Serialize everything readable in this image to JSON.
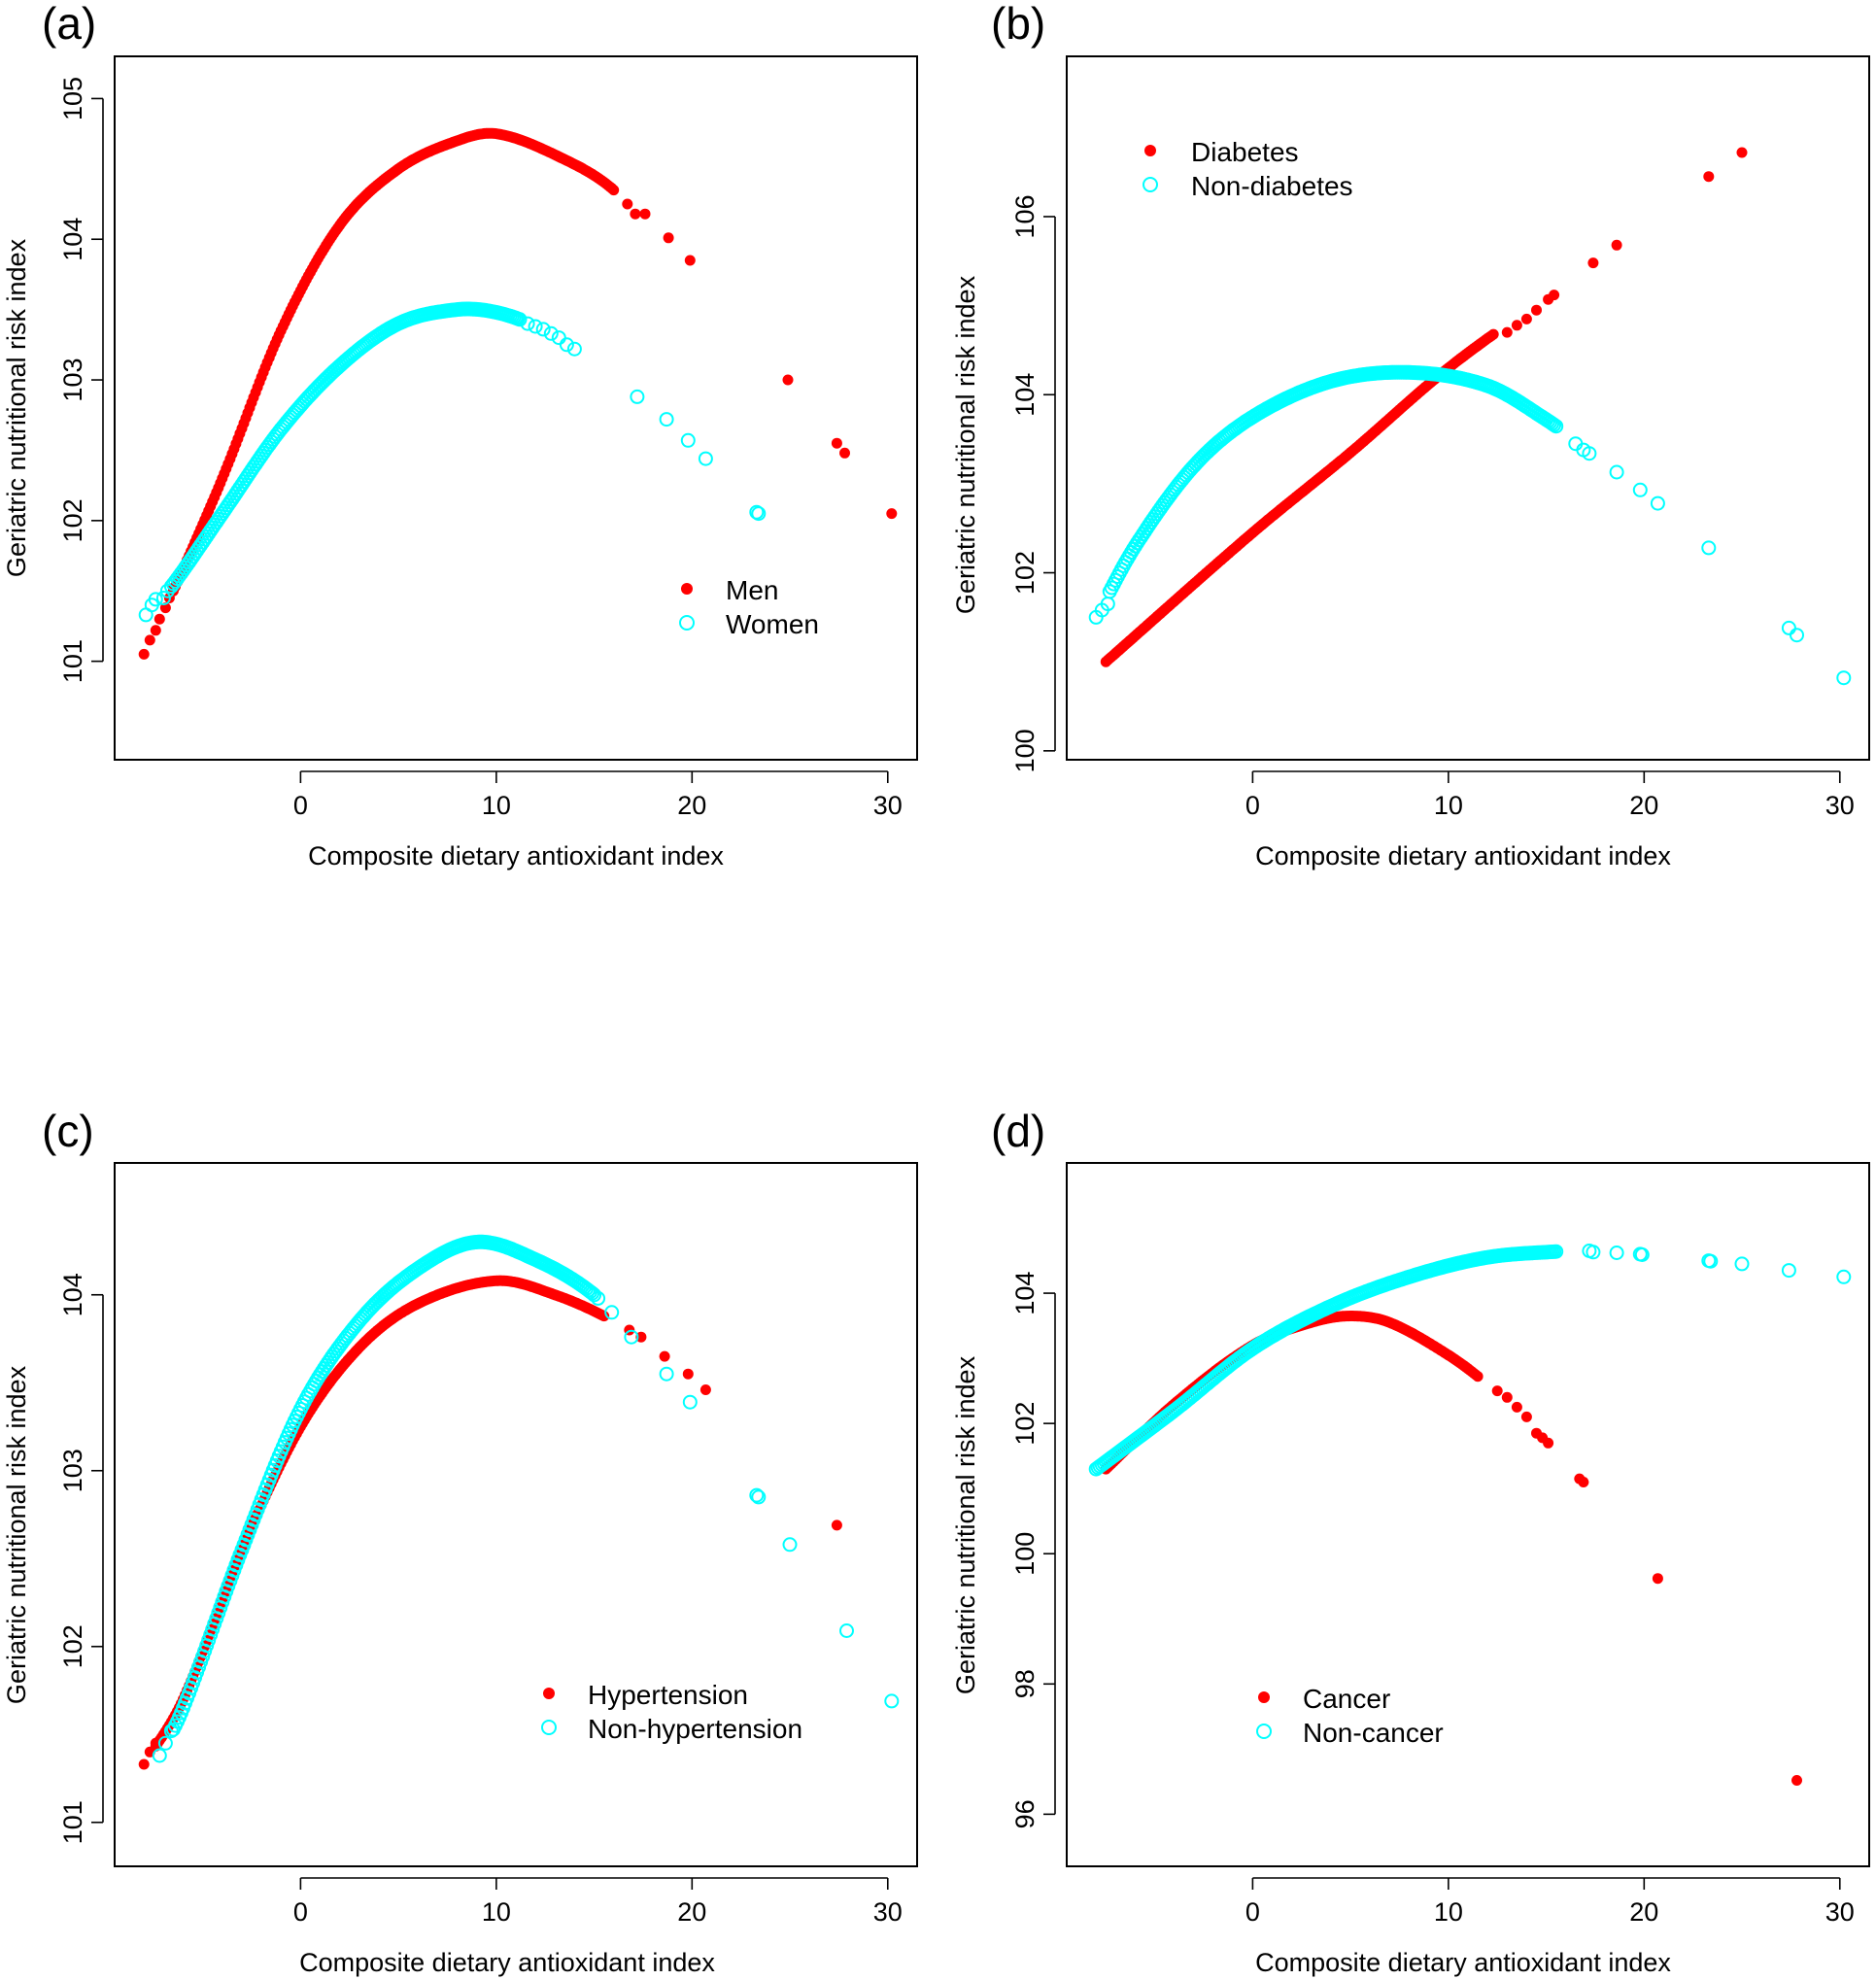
{
  "colors": {
    "series_a": "#ff0000",
    "series_b": "#00ffff",
    "axis": "#000000"
  },
  "chart_data": [
    {
      "type": "scatter",
      "panel_label": "(a)",
      "xlabel": "Composite dietary antioxidant index",
      "ylabel": "Geriatric nutritional risk index",
      "xlim": [
        -9.5,
        31.5
      ],
      "ylim": [
        100.3,
        105.3
      ],
      "xticks": [
        0,
        10,
        20,
        30
      ],
      "yticks": [
        101,
        102,
        103,
        104,
        105
      ],
      "legend": {
        "position": "right",
        "entries": [
          "Men",
          "Women"
        ]
      },
      "series": [
        {
          "name": "Men",
          "marker": "filled-circle",
          "color": "#ff0000",
          "curve": {
            "knots": [
              [
                -8,
                101.05
              ],
              [
                -6.5,
                101.5
              ],
              [
                -4,
                102.3
              ],
              [
                -1,
                103.35
              ],
              [
                2,
                104.1
              ],
              [
                5,
                104.5
              ],
              [
                8,
                104.7
              ],
              [
                10,
                104.75
              ],
              [
                13,
                104.6
              ],
              [
                16,
                104.35
              ],
              [
                18,
                104.0
              ],
              [
                20,
                103.85
              ]
            ],
            "x_from": -6.5,
            "x_to": 16,
            "step": 0.1
          },
          "points": [
            [
              -8,
              101.05
            ],
            [
              -7.7,
              101.15
            ],
            [
              -7.4,
              101.22
            ],
            [
              -7.2,
              101.3
            ],
            [
              -6.9,
              101.38
            ],
            [
              -6.7,
              101.45
            ],
            [
              -6.5,
              101.52
            ],
            [
              16.7,
              104.25
            ],
            [
              17.1,
              104.18
            ],
            [
              17.6,
              104.18
            ],
            [
              18.8,
              104.01
            ],
            [
              19.9,
              103.85
            ],
            [
              24.9,
              103.0
            ],
            [
              27.4,
              102.55
            ],
            [
              27.8,
              102.48
            ],
            [
              30.2,
              102.05
            ]
          ]
        },
        {
          "name": "Women",
          "marker": "open-circle",
          "color": "#00ffff",
          "curve": {
            "knots": [
              [
                -7.8,
                101.35
              ],
              [
                -6.5,
                101.55
              ],
              [
                -4,
                102.05
              ],
              [
                -1,
                102.65
              ],
              [
                2,
                103.1
              ],
              [
                5,
                103.4
              ],
              [
                8,
                103.5
              ],
              [
                10,
                103.48
              ],
              [
                12,
                103.38
              ],
              [
                14,
                103.2
              ]
            ],
            "x_from": -6.6,
            "x_to": 11.2,
            "step": 0.1
          },
          "points": [
            [
              -7.9,
              101.33
            ],
            [
              -7.6,
              101.4
            ],
            [
              -7.4,
              101.44
            ],
            [
              -7.0,
              101.45
            ],
            [
              -6.8,
              101.5
            ],
            [
              11.6,
              103.4
            ],
            [
              12.0,
              103.38
            ],
            [
              12.4,
              103.36
            ],
            [
              12.8,
              103.33
            ],
            [
              13.2,
              103.3
            ],
            [
              13.6,
              103.25
            ],
            [
              14.0,
              103.22
            ],
            [
              17.2,
              102.88
            ],
            [
              18.7,
              102.72
            ],
            [
              19.8,
              102.57
            ],
            [
              20.7,
              102.44
            ],
            [
              23.3,
              102.06
            ],
            [
              23.4,
              102.05
            ]
          ]
        }
      ]
    },
    {
      "type": "scatter",
      "panel_label": "(b)",
      "xlabel": "Composite dietary antioxidant index",
      "ylabel": "Geriatric nutritional risk index",
      "xlim": [
        -9.5,
        31.5
      ],
      "ylim": [
        99.9,
        107.8
      ],
      "xticks": [
        0,
        10,
        20,
        30
      ],
      "yticks": [
        100,
        102,
        104,
        106
      ],
      "legend": {
        "position": "top-left",
        "entries": [
          "Diabetes",
          "Non-diabetes"
        ]
      },
      "series": [
        {
          "name": "Diabetes",
          "marker": "filled-circle",
          "color": "#ff0000",
          "curve": {
            "knots": [
              [
                -7.5,
                101.0
              ],
              [
                0,
                102.45
              ],
              [
                5,
                103.35
              ],
              [
                10,
                104.3
              ],
              [
                15,
                105.1
              ]
            ],
            "x_from": -7.5,
            "x_to": 12.3,
            "step": 0.1
          },
          "points": [
            [
              13.0,
              104.7
            ],
            [
              13.5,
              104.78
            ],
            [
              14.0,
              104.85
            ],
            [
              14.5,
              104.95
            ],
            [
              15.1,
              105.07
            ],
            [
              15.4,
              105.12
            ],
            [
              17.4,
              105.48
            ],
            [
              18.6,
              105.68
            ],
            [
              23.3,
              106.45
            ],
            [
              25.0,
              106.72
            ]
          ]
        },
        {
          "name": "Non-diabetes",
          "marker": "open-circle",
          "color": "#00ffff",
          "curve": {
            "knots": [
              [
                -8,
                101.5
              ],
              [
                -6,
                102.3
              ],
              [
                -3,
                103.2
              ],
              [
                0,
                103.75
              ],
              [
                4,
                104.15
              ],
              [
                8,
                104.25
              ],
              [
                12,
                104.1
              ],
              [
                15,
                103.72
              ],
              [
                17,
                103.4
              ]
            ],
            "x_from": -7.3,
            "x_to": 15.5,
            "step": 0.1
          },
          "points": [
            [
              -8,
              101.5
            ],
            [
              -7.7,
              101.58
            ],
            [
              -7.4,
              101.65
            ],
            [
              16.5,
              103.45
            ],
            [
              16.9,
              103.38
            ],
            [
              17.2,
              103.34
            ],
            [
              18.6,
              103.13
            ],
            [
              19.8,
              102.93
            ],
            [
              20.7,
              102.78
            ],
            [
              23.3,
              102.28
            ],
            [
              27.4,
              101.38
            ],
            [
              27.8,
              101.3
            ],
            [
              30.2,
              100.82
            ]
          ]
        }
      ]
    },
    {
      "type": "scatter",
      "panel_label": "(c)",
      "xlabel": "Composite dietary antioxidant index",
      "ylabel": "Geriatric nutritional risk index",
      "xlim": [
        -9.5,
        31.5
      ],
      "ylim": [
        100.75,
        104.75
      ],
      "xticks": [
        0,
        10,
        20,
        30
      ],
      "yticks": [
        101,
        102,
        103,
        104
      ],
      "legend": {
        "position": "bottom-right",
        "entries": [
          "Hypertension",
          "Non-hypertension"
        ]
      },
      "series": [
        {
          "name": "Hypertension",
          "marker": "filled-circle",
          "color": "#ff0000",
          "curve": {
            "knots": [
              [
                -8,
                101.33
              ],
              [
                -6,
                101.7
              ],
              [
                -3,
                102.55
              ],
              [
                0,
                103.25
              ],
              [
                3,
                103.7
              ],
              [
                6,
                103.95
              ],
              [
                10,
                104.08
              ],
              [
                13,
                104.0
              ],
              [
                16,
                103.85
              ],
              [
                18,
                103.7
              ]
            ],
            "x_from": -7.4,
            "x_to": 15.5,
            "step": 0.1
          },
          "points": [
            [
              -8.0,
              101.33
            ],
            [
              -7.7,
              101.4
            ],
            [
              -7.4,
              101.45
            ],
            [
              16.8,
              103.8
            ],
            [
              17.4,
              103.76
            ],
            [
              18.6,
              103.65
            ],
            [
              19.8,
              103.55
            ],
            [
              20.7,
              103.46
            ],
            [
              27.4,
              102.69
            ]
          ]
        },
        {
          "name": "Non-hypertension",
          "marker": "open-circle",
          "color": "#00ffff",
          "curve": {
            "knots": [
              [
                -7.2,
                101.38
              ],
              [
                -6,
                101.65
              ],
              [
                -3,
                102.55
              ],
              [
                0,
                103.35
              ],
              [
                3,
                103.85
              ],
              [
                6,
                104.15
              ],
              [
                9,
                104.3
              ],
              [
                12,
                104.2
              ],
              [
                15,
                104.0
              ],
              [
                17,
                103.75
              ]
            ],
            "x_from": -6.5,
            "x_to": 15.0,
            "step": 0.1
          },
          "points": [
            [
              -7.2,
              101.38
            ],
            [
              -6.9,
              101.45
            ],
            [
              -6.6,
              101.52
            ],
            [
              15.2,
              103.98
            ],
            [
              15.9,
              103.9
            ],
            [
              16.9,
              103.76
            ],
            [
              18.7,
              103.55
            ],
            [
              19.9,
              103.39
            ],
            [
              23.3,
              102.86
            ],
            [
              23.4,
              102.85
            ],
            [
              25.0,
              102.58
            ],
            [
              27.9,
              102.09
            ],
            [
              30.2,
              101.69
            ]
          ]
        }
      ]
    },
    {
      "type": "scatter",
      "panel_label": "(d)",
      "xlabel": "Composite dietary antioxidant index",
      "ylabel": "Geriatric nutritional risk index",
      "xlim": [
        -9.5,
        31.5
      ],
      "ylim": [
        95.2,
        106.0
      ],
      "xticks": [
        0,
        10,
        20,
        30
      ],
      "yticks": [
        96,
        98,
        100,
        102,
        104
      ],
      "legend": {
        "position": "bottom-left",
        "entries": [
          "Cancer",
          "Non-cancer"
        ]
      },
      "series": [
        {
          "name": "Cancer",
          "marker": "filled-circle",
          "color": "#ff0000",
          "curve": {
            "knots": [
              [
                -7.5,
                101.3
              ],
              [
                -4,
                102.3
              ],
              [
                0,
                103.2
              ],
              [
                3,
                103.55
              ],
              [
                5,
                103.65
              ],
              [
                7,
                103.55
              ],
              [
                10,
                103.05
              ],
              [
                12,
                102.6
              ],
              [
                14,
                102.05
              ],
              [
                15,
                101.75
              ]
            ],
            "x_from": -7.5,
            "x_to": 11.5,
            "step": 0.1
          },
          "points": [
            [
              12.5,
              102.5
            ],
            [
              13.0,
              102.4
            ],
            [
              13.5,
              102.25
            ],
            [
              14.0,
              102.1
            ],
            [
              14.5,
              101.85
            ],
            [
              14.8,
              101.78
            ],
            [
              15.1,
              101.7
            ],
            [
              16.7,
              101.15
            ],
            [
              16.9,
              101.1
            ],
            [
              20.7,
              99.62
            ],
            [
              27.8,
              96.52
            ]
          ]
        },
        {
          "name": "Non-cancer",
          "marker": "open-circle",
          "color": "#00ffff",
          "curve": {
            "knots": [
              [
                -8,
                101.3
              ],
              [
                -4,
                102.2
              ],
              [
                0,
                103.15
              ],
              [
                4,
                103.8
              ],
              [
                8,
                104.25
              ],
              [
                12,
                104.55
              ],
              [
                16,
                104.65
              ]
            ],
            "x_from": -8,
            "x_to": 15.5,
            "step": 0.1
          },
          "points": [
            [
              17.2,
              104.65
            ],
            [
              17.4,
              104.63
            ],
            [
              18.6,
              104.62
            ],
            [
              19.8,
              104.6
            ],
            [
              19.9,
              104.59
            ],
            [
              23.3,
              104.5
            ],
            [
              23.4,
              104.49
            ],
            [
              25.0,
              104.45
            ],
            [
              27.4,
              104.35
            ],
            [
              30.2,
              104.25
            ]
          ]
        }
      ]
    }
  ]
}
